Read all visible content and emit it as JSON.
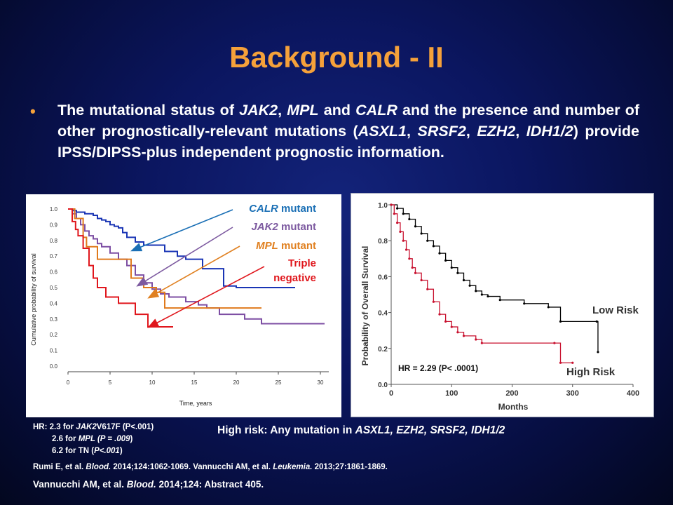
{
  "slide": {
    "title": "Background - II",
    "bullet_marker": "•",
    "bullet_segments": [
      {
        "t": "The mutational status of ",
        "i": false
      },
      {
        "t": "JAK2",
        "i": true
      },
      {
        "t": ", ",
        "i": false
      },
      {
        "t": "MPL",
        "i": true
      },
      {
        "t": " and ",
        "i": false
      },
      {
        "t": "CALR",
        "i": true
      },
      {
        "t": " and the presence and number of other prognostically-relevant mutations (",
        "i": false
      },
      {
        "t": "ASXL1",
        "i": true
      },
      {
        "t": ", ",
        "i": false
      },
      {
        "t": "SRSF2",
        "i": true
      },
      {
        "t": ", ",
        "i": false
      },
      {
        "t": "EZH2",
        "i": true
      },
      {
        "t": ", ",
        "i": false
      },
      {
        "t": "IDH1/2",
        "i": true
      },
      {
        "t": ") provide IPSS/DIPSS-plus independent prognostic information.",
        "i": false
      }
    ]
  },
  "chart_data": [
    {
      "type": "line",
      "xlabel": "Time, years",
      "ylabel": "Cumulative probability of survival",
      "xlim": [
        0,
        31
      ],
      "ylim": [
        0,
        1.0
      ],
      "x_ticks": [
        "0",
        "5",
        "10",
        "15",
        "20",
        "25",
        "30"
      ],
      "y_ticks": [
        "0.0",
        "0.1",
        "0.2",
        "0.3",
        "0.4",
        "0.5",
        "0.6",
        "0.7",
        "0.8",
        "0.9",
        "1.0"
      ],
      "series": [
        {
          "name": "CALR mutant",
          "color": "#1a35b5",
          "x": [
            0,
            0.5,
            1.0,
            1.5,
            2.0,
            2.5,
            3.0,
            3.5,
            4.0,
            4.5,
            5.0,
            5.5,
            6.0,
            6.5,
            7.0,
            8.0,
            9.0,
            11.5,
            13.0,
            14.0,
            15.5,
            16.0,
            18.5,
            20.0,
            27.0
          ],
          "y": [
            1.0,
            0.99,
            0.98,
            0.98,
            0.97,
            0.97,
            0.96,
            0.94,
            0.93,
            0.92,
            0.9,
            0.89,
            0.88,
            0.85,
            0.82,
            0.79,
            0.77,
            0.73,
            0.7,
            0.68,
            0.68,
            0.62,
            0.51,
            0.5,
            0.5
          ]
        },
        {
          "name": "JAK2 mutant",
          "color": "#7d4ea3",
          "x": [
            0,
            0.5,
            1.0,
            1.5,
            2.0,
            2.5,
            3.0,
            3.5,
            4.0,
            5.0,
            6.0,
            7.0,
            8.0,
            9.0,
            10.0,
            11.0,
            12.0,
            14.0,
            15.5,
            16.5,
            18.0,
            21.0,
            23.0,
            30.5
          ],
          "y": [
            1.0,
            0.97,
            0.94,
            0.9,
            0.86,
            0.83,
            0.81,
            0.78,
            0.76,
            0.72,
            0.68,
            0.64,
            0.58,
            0.53,
            0.49,
            0.46,
            0.44,
            0.41,
            0.39,
            0.37,
            0.33,
            0.3,
            0.27,
            0.27
          ]
        },
        {
          "name": "MPL mutant",
          "color": "#e07a1c",
          "x": [
            0,
            0.8,
            1.8,
            2.2,
            3.5,
            5.5,
            7.5,
            9.0,
            10.5,
            11.5,
            23.0
          ],
          "y": [
            1.0,
            0.94,
            0.82,
            0.76,
            0.68,
            0.68,
            0.56,
            0.5,
            0.47,
            0.37,
            0.37
          ]
        },
        {
          "name": "Triple negative",
          "color": "#e0161c",
          "x": [
            0,
            0.5,
            0.9,
            1.2,
            1.8,
            2.5,
            3.0,
            3.5,
            4.5,
            6.0,
            8.0,
            9.5,
            11.5,
            12.5
          ],
          "y": [
            1.0,
            0.92,
            0.87,
            0.83,
            0.75,
            0.64,
            0.56,
            0.5,
            0.44,
            0.4,
            0.33,
            0.25,
            0.25,
            0.25
          ]
        }
      ],
      "annotations": {
        "calr_italic": "CALR",
        "calr_rest": " mutant",
        "jak2_italic": "JAK2",
        "jak2_rest": " mutant",
        "mpl_italic": "MPL",
        "mpl_rest": " mutant",
        "tn_line1": "Triple",
        "tn_line2": "negative"
      }
    },
    {
      "type": "line",
      "xlabel": "Months",
      "ylabel": "Probability of Overall Survival",
      "xlim": [
        0,
        400
      ],
      "ylim": [
        0,
        1.0
      ],
      "x_ticks": [
        "0",
        "100",
        "200",
        "300",
        "400"
      ],
      "y_ticks": [
        "0.0",
        "0.2",
        "0.4",
        "0.6",
        "0.8",
        "1.0"
      ],
      "series": [
        {
          "name": "Low Risk",
          "color": "#000000",
          "x": [
            0,
            10,
            20,
            30,
            40,
            50,
            60,
            70,
            80,
            90,
            100,
            110,
            120,
            130,
            140,
            150,
            160,
            180,
            220,
            260,
            280,
            340,
            342
          ],
          "y": [
            1.0,
            0.98,
            0.95,
            0.92,
            0.88,
            0.84,
            0.8,
            0.77,
            0.73,
            0.69,
            0.65,
            0.62,
            0.58,
            0.55,
            0.52,
            0.5,
            0.49,
            0.47,
            0.45,
            0.43,
            0.35,
            0.35,
            0.18
          ]
        },
        {
          "name": "High Risk",
          "color": "#c8102e",
          "x": [
            0,
            5,
            10,
            15,
            20,
            25,
            30,
            35,
            40,
            50,
            60,
            70,
            80,
            90,
            100,
            110,
            120,
            140,
            150,
            270,
            280,
            300
          ],
          "y": [
            1.0,
            0.95,
            0.9,
            0.85,
            0.8,
            0.75,
            0.7,
            0.65,
            0.62,
            0.58,
            0.53,
            0.46,
            0.39,
            0.35,
            0.32,
            0.29,
            0.27,
            0.25,
            0.23,
            0.23,
            0.12,
            0.12
          ]
        }
      ],
      "annotations": {
        "hr_text": "HR = 2.29 (P< .0001)",
        "low_label": "Low Risk",
        "high_label": "High Risk"
      }
    }
  ],
  "footer": {
    "hr_line1_a": "HR: 2.3  for ",
    "hr_line1_i": "JAK2",
    "hr_line1_b": "V617F (P<.001)",
    "hr_line2_a": "2.6  for ",
    "hr_line2_i": "MPL (P = .009",
    "hr_line2_b": ")",
    "hr_line3_a": "6.2 for TN  (",
    "hr_line3_i": "P<.001",
    "hr_line3_b": ")",
    "risk_a": "High risk: Any mutation in ",
    "risk_i": "ASXL1, EZH2, SRSF2, IDH1/2",
    "ref1_a": "Rumi E, et al. ",
    "ref1_i": "Blood.",
    "ref1_b": " 2014;124:1062-1069.  Vannucchi AM, et al. ",
    "ref1_i2": "Leukemia.",
    "ref1_c": " 2013;27:1861-1869.",
    "ref2_a": "Vannucchi AM, et al. ",
    "ref2_i": "Blood.",
    "ref2_b": " 2014;124: Abstract 405."
  }
}
